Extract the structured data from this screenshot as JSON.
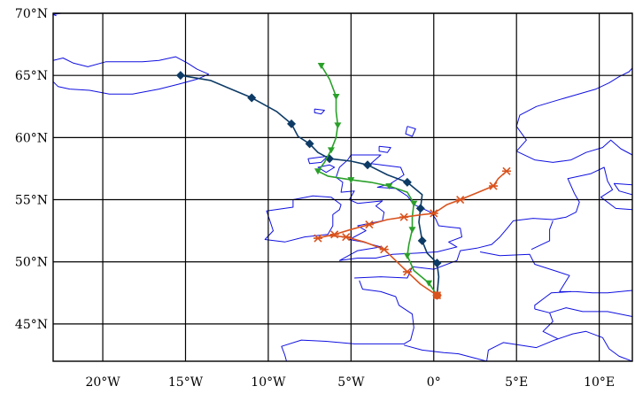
{
  "chart_data": {
    "type": "line",
    "title": "",
    "xlabel": "",
    "ylabel": "",
    "xlim": [
      -23,
      12
    ],
    "ylim": [
      42,
      70
    ],
    "grid": true,
    "x_ticks": [
      {
        "value": -20,
        "label": "20°W"
      },
      {
        "value": -15,
        "label": "15°W"
      },
      {
        "value": -10,
        "label": "10°W"
      },
      {
        "value": -5,
        "label": "5°W"
      },
      {
        "value": 0,
        "label": "0°"
      },
      {
        "value": 5,
        "label": "5°E"
      },
      {
        "value": 10,
        "label": "10°E"
      }
    ],
    "y_ticks": [
      {
        "value": 45,
        "label": "45°N"
      },
      {
        "value": 50,
        "label": "50°N"
      },
      {
        "value": 55,
        "label": "55°N"
      },
      {
        "value": 60,
        "label": "60°N"
      },
      {
        "value": 65,
        "label": "65°N"
      },
      {
        "value": 70,
        "label": "70°N"
      }
    ],
    "series": [
      {
        "color": "#0d3b66",
        "marker": "diamond",
        "points": [
          [
            -15.3,
            65.0
          ],
          [
            -13.5,
            64.6
          ],
          [
            -11.0,
            63.2
          ],
          [
            -9.5,
            62.1
          ],
          [
            -8.6,
            61.1
          ],
          [
            -8.2,
            60.1
          ],
          [
            -7.5,
            59.5
          ],
          [
            -7.0,
            58.8
          ],
          [
            -6.3,
            58.3
          ],
          [
            -5.0,
            58.1
          ],
          [
            -4.0,
            57.8
          ],
          [
            -2.8,
            57.0
          ],
          [
            -1.6,
            56.4
          ],
          [
            -0.7,
            55.4
          ],
          [
            -0.8,
            54.3
          ],
          [
            -0.9,
            53.2
          ],
          [
            -0.7,
            51.7
          ],
          [
            -0.4,
            50.7
          ],
          [
            0.2,
            49.9
          ],
          [
            0.3,
            48.8
          ],
          [
            0.2,
            47.3
          ]
        ]
      },
      {
        "color": "#2aa02a",
        "marker": "triangle-down",
        "points": [
          [
            -6.8,
            65.8
          ],
          [
            -6.3,
            64.7
          ],
          [
            -5.9,
            63.3
          ],
          [
            -5.9,
            62.1
          ],
          [
            -5.8,
            61.0
          ],
          [
            -5.9,
            60.0
          ],
          [
            -6.2,
            59.0
          ],
          [
            -6.6,
            58.0
          ],
          [
            -7.0,
            57.3
          ],
          [
            -6.4,
            56.9
          ],
          [
            -5.0,
            56.6
          ],
          [
            -3.8,
            56.4
          ],
          [
            -2.7,
            56.1
          ],
          [
            -1.6,
            55.6
          ],
          [
            -1.2,
            54.7
          ],
          [
            -1.3,
            53.6
          ],
          [
            -1.3,
            52.6
          ],
          [
            -1.5,
            51.4
          ],
          [
            -1.6,
            50.5
          ],
          [
            -1.2,
            49.3
          ],
          [
            -0.3,
            48.3
          ],
          [
            0.2,
            47.3
          ]
        ]
      },
      {
        "color": "#d9531e",
        "marker": "x",
        "points": [
          [
            4.4,
            57.3
          ],
          [
            3.9,
            56.7
          ],
          [
            3.6,
            56.1
          ],
          [
            2.7,
            55.6
          ],
          [
            1.6,
            55.0
          ],
          [
            0.8,
            54.6
          ],
          [
            0.0,
            53.9
          ],
          [
            -0.7,
            53.8
          ],
          [
            -1.8,
            53.6
          ],
          [
            -2.8,
            53.4
          ],
          [
            -3.9,
            53.0
          ],
          [
            -5.0,
            52.6
          ],
          [
            -6.0,
            52.2
          ],
          [
            -6.7,
            52.0
          ],
          [
            -7.0,
            51.9
          ],
          [
            -6.4,
            52.1
          ],
          [
            -5.3,
            52.0
          ],
          [
            -4.2,
            51.6
          ],
          [
            -3.0,
            51.0
          ],
          [
            -2.3,
            50.1
          ],
          [
            -1.6,
            49.2
          ],
          [
            -0.8,
            48.2
          ],
          [
            0.2,
            47.3
          ]
        ]
      }
    ]
  },
  "map": {
    "coastline_color": "#1010e0",
    "coastlines": [
      [
        [
          -22.8,
          69.8
        ],
        [
          -23.0,
          69.9
        ],
        [
          -22.5,
          70.0
        ]
      ],
      [
        [
          -23.0,
          66.2
        ],
        [
          -22.4,
          66.4
        ],
        [
          -21.8,
          66.0
        ],
        [
          -20.9,
          65.7
        ],
        [
          -19.8,
          66.1
        ],
        [
          -18.9,
          66.1
        ],
        [
          -17.6,
          66.1
        ],
        [
          -16.6,
          66.2
        ],
        [
          -15.6,
          66.5
        ],
        [
          -14.9,
          66.0
        ],
        [
          -14.3,
          65.5
        ],
        [
          -13.6,
          65.1
        ],
        [
          -14.3,
          64.7
        ],
        [
          -15.4,
          64.3
        ],
        [
          -16.6,
          63.9
        ],
        [
          -18.2,
          63.5
        ],
        [
          -19.6,
          63.5
        ],
        [
          -20.8,
          63.8
        ],
        [
          -22.0,
          63.9
        ],
        [
          -22.7,
          64.1
        ],
        [
          -23.0,
          64.5
        ]
      ],
      [
        [
          -7.2,
          62.3
        ],
        [
          -6.6,
          62.2
        ],
        [
          -6.8,
          61.9
        ],
        [
          -7.2,
          62.0
        ],
        [
          -7.2,
          62.3
        ]
      ],
      [
        [
          -1.6,
          60.9
        ],
        [
          -1.1,
          60.7
        ],
        [
          -1.3,
          60.1
        ],
        [
          -1.7,
          60.3
        ],
        [
          -1.6,
          60.9
        ]
      ],
      [
        [
          -3.3,
          59.3
        ],
        [
          -2.6,
          59.2
        ],
        [
          -2.8,
          58.8
        ],
        [
          -3.3,
          58.9
        ],
        [
          -3.3,
          59.3
        ]
      ],
      [
        [
          -5.0,
          58.6
        ],
        [
          -3.2,
          58.6
        ],
        [
          -3.8,
          57.9
        ],
        [
          -2.0,
          57.6
        ],
        [
          -1.8,
          57.0
        ],
        [
          -2.6,
          56.3
        ],
        [
          -3.4,
          56.0
        ],
        [
          -2.3,
          55.9
        ],
        [
          -1.6,
          55.3
        ],
        [
          -1.2,
          54.6
        ],
        [
          -0.2,
          54.0
        ],
        [
          0.1,
          53.5
        ],
        [
          0.3,
          52.9
        ],
        [
          1.6,
          52.7
        ],
        [
          1.7,
          52.0
        ],
        [
          0.9,
          51.6
        ],
        [
          1.4,
          51.2
        ],
        [
          0.2,
          50.8
        ],
        [
          -1.0,
          50.7
        ],
        [
          -2.5,
          50.6
        ],
        [
          -3.5,
          50.3
        ],
        [
          -4.6,
          50.3
        ],
        [
          -5.7,
          50.1
        ],
        [
          -4.6,
          50.9
        ],
        [
          -3.2,
          51.2
        ],
        [
          -4.3,
          51.6
        ],
        [
          -5.1,
          51.8
        ],
        [
          -4.1,
          52.5
        ],
        [
          -4.6,
          52.9
        ],
        [
          -3.1,
          53.3
        ],
        [
          -3.0,
          54.0
        ],
        [
          -3.5,
          54.5
        ],
        [
          -3.1,
          54.9
        ],
        [
          -4.6,
          54.7
        ],
        [
          -5.1,
          55.0
        ],
        [
          -4.8,
          55.7
        ],
        [
          -5.6,
          55.6
        ],
        [
          -5.5,
          56.4
        ],
        [
          -5.9,
          56.8
        ],
        [
          -5.7,
          57.6
        ],
        [
          -5.2,
          58.2
        ],
        [
          -5.0,
          58.6
        ]
      ],
      [
        [
          -6.3,
          57.8
        ],
        [
          -6.0,
          57.6
        ],
        [
          -6.5,
          57.2
        ],
        [
          -7.0,
          57.6
        ],
        [
          -6.3,
          57.8
        ]
      ],
      [
        [
          -7.6,
          58.3
        ],
        [
          -6.4,
          58.5
        ],
        [
          -6.8,
          58.0
        ],
        [
          -7.5,
          57.9
        ],
        [
          -7.6,
          58.3
        ]
      ],
      [
        [
          -6.2,
          55.2
        ],
        [
          -5.6,
          54.6
        ],
        [
          -5.7,
          54.2
        ],
        [
          -6.1,
          53.8
        ],
        [
          -6.1,
          52.9
        ],
        [
          -6.4,
          52.2
        ],
        [
          -7.8,
          52.0
        ],
        [
          -9.0,
          51.6
        ],
        [
          -10.2,
          51.8
        ],
        [
          -9.7,
          52.5
        ],
        [
          -9.9,
          53.3
        ],
        [
          -10.1,
          54.1
        ],
        [
          -8.5,
          54.4
        ],
        [
          -8.5,
          55.0
        ],
        [
          -7.3,
          55.3
        ],
        [
          -6.2,
          55.2
        ]
      ],
      [
        [
          -4.8,
          48.7
        ],
        [
          -3.2,
          48.8
        ],
        [
          -1.6,
          48.7
        ],
        [
          -1.3,
          49.6
        ],
        [
          0.0,
          49.4
        ],
        [
          1.4,
          50.1
        ],
        [
          1.6,
          50.9
        ],
        [
          2.6,
          51.1
        ],
        [
          3.5,
          51.4
        ],
        [
          4.0,
          52.0
        ],
        [
          4.5,
          52.8
        ],
        [
          4.8,
          53.3
        ],
        [
          6.0,
          53.5
        ],
        [
          7.2,
          53.4
        ],
        [
          8.0,
          53.6
        ],
        [
          8.6,
          54.0
        ],
        [
          8.8,
          54.8
        ],
        [
          8.5,
          55.5
        ],
        [
          8.1,
          56.7
        ],
        [
          9.5,
          57.1
        ],
        [
          10.3,
          57.6
        ],
        [
          10.5,
          56.5
        ],
        [
          10.8,
          55.8
        ],
        [
          10.1,
          55.2
        ],
        [
          11.0,
          54.3
        ],
        [
          12.0,
          54.2
        ]
      ],
      [
        [
          12.0,
          55.4
        ],
        [
          11.2,
          55.7
        ],
        [
          10.9,
          56.3
        ],
        [
          12.0,
          56.2
        ]
      ],
      [
        [
          5.0,
          58.9
        ],
        [
          5.6,
          59.8
        ],
        [
          5.0,
          60.9
        ],
        [
          5.2,
          61.8
        ],
        [
          6.2,
          62.5
        ],
        [
          7.2,
          62.9
        ],
        [
          8.5,
          63.4
        ],
        [
          9.8,
          63.9
        ],
        [
          10.6,
          64.4
        ],
        [
          11.2,
          64.9
        ],
        [
          11.8,
          65.3
        ],
        [
          12.0,
          65.6
        ]
      ],
      [
        [
          5.0,
          58.9
        ],
        [
          6.1,
          58.2
        ],
        [
          7.2,
          58.0
        ],
        [
          8.3,
          58.2
        ],
        [
          9.2,
          58.8
        ],
        [
          10.2,
          59.2
        ],
        [
          10.7,
          59.8
        ],
        [
          11.3,
          59.1
        ],
        [
          12.0,
          58.6
        ]
      ],
      [
        [
          -4.5,
          48.5
        ],
        [
          -4.3,
          47.8
        ],
        [
          -3.2,
          47.6
        ],
        [
          -2.3,
          47.2
        ],
        [
          -2.1,
          46.5
        ],
        [
          -1.3,
          45.8
        ],
        [
          -1.2,
          44.7
        ],
        [
          -1.4,
          43.7
        ],
        [
          -1.8,
          43.4
        ],
        [
          -3.2,
          43.4
        ],
        [
          -4.8,
          43.4
        ],
        [
          -6.5,
          43.6
        ],
        [
          -8.0,
          43.7
        ],
        [
          -9.2,
          43.2
        ],
        [
          -9.0,
          42.5
        ],
        [
          -8.9,
          42.0
        ]
      ],
      [
        [
          3.2,
          42.0
        ],
        [
          3.3,
          42.9
        ],
        [
          4.2,
          43.5
        ],
        [
          5.2,
          43.3
        ],
        [
          6.2,
          43.1
        ],
        [
          7.3,
          43.7
        ],
        [
          8.4,
          44.2
        ],
        [
          9.2,
          44.4
        ],
        [
          10.2,
          43.9
        ],
        [
          10.6,
          43.0
        ],
        [
          11.2,
          42.4
        ],
        [
          12.0,
          42.0
        ]
      ],
      [
        [
          2.8,
          50.8
        ],
        [
          4.0,
          50.5
        ],
        [
          5.8,
          50.6
        ],
        [
          6.1,
          49.8
        ],
        [
          7.5,
          49.2
        ],
        [
          8.2,
          48.9
        ],
        [
          7.6,
          47.6
        ],
        [
          8.6,
          47.6
        ],
        [
          9.6,
          47.5
        ],
        [
          10.5,
          47.5
        ],
        [
          12.0,
          47.7
        ]
      ],
      [
        [
          6.1,
          46.2
        ],
        [
          7.0,
          45.9
        ],
        [
          7.2,
          45.2
        ],
        [
          6.6,
          44.4
        ],
        [
          7.5,
          43.8
        ]
      ],
      [
        [
          3.2,
          42.0
        ],
        [
          1.5,
          42.6
        ],
        [
          0.6,
          42.7
        ],
        [
          -0.7,
          42.9
        ],
        [
          -1.8,
          43.3
        ]
      ],
      [
        [
          5.9,
          51.0
        ],
        [
          7.0,
          51.7
        ],
        [
          7.0,
          52.6
        ],
        [
          7.2,
          53.3
        ]
      ],
      [
        [
          8.3,
          47.6
        ],
        [
          7.1,
          47.5
        ],
        [
          6.8,
          47.2
        ],
        [
          6.1,
          46.5
        ],
        [
          6.1,
          46.2
        ]
      ],
      [
        [
          12.0,
          45.6
        ],
        [
          10.5,
          46.0
        ],
        [
          9.0,
          46.0
        ],
        [
          8.0,
          46.3
        ],
        [
          7.0,
          45.9
        ]
      ]
    ]
  }
}
